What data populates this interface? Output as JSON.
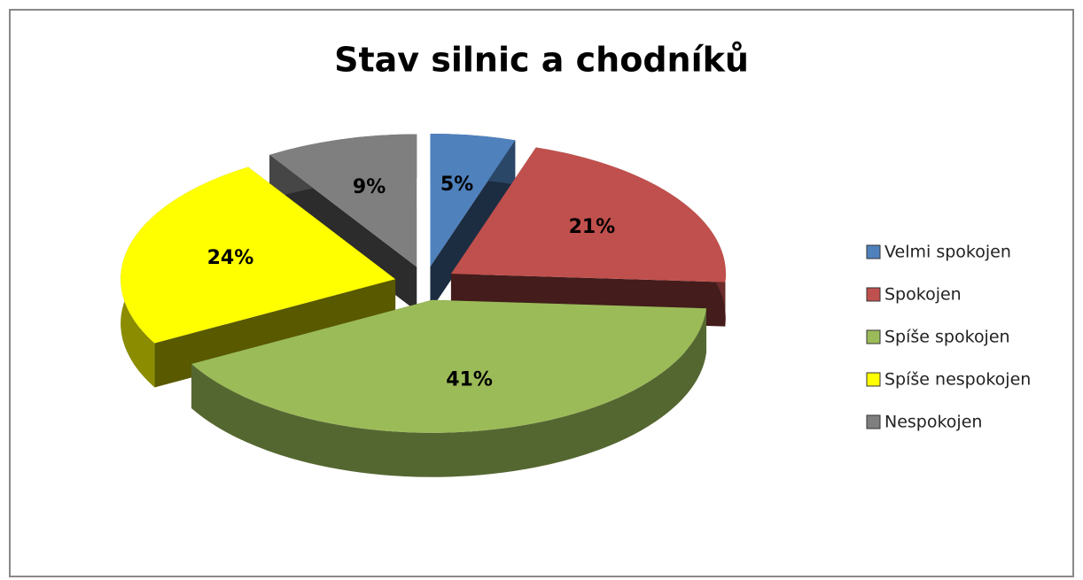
{
  "chart_data": {
    "type": "pie3d",
    "title": "Stav silnic a chodníků",
    "categories": [
      "Velmi spokojen",
      "Spokojen",
      "Spíše spokojen",
      "Spíše nespokojen",
      "Nespokojen"
    ],
    "values": [
      5,
      21,
      41,
      24,
      9
    ],
    "value_labels": [
      "5%",
      "21%",
      "41%",
      "24%",
      "9%"
    ],
    "colors": [
      "#4f81bd",
      "#c0504d",
      "#9bbb59",
      "#ffff00",
      "#7f7f7f"
    ],
    "legend": "right"
  }
}
